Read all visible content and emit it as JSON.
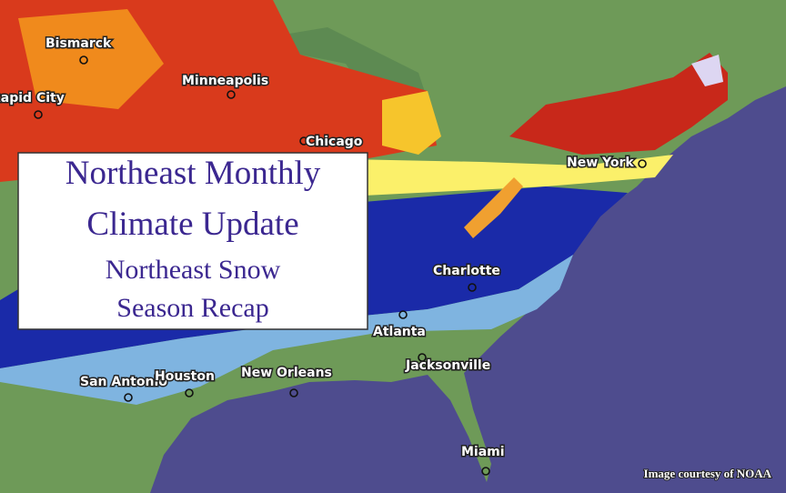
{
  "title_box": {
    "lines": [
      "Northeast Monthly",
      "Climate Update",
      "Northeast Snow",
      "Season Recap"
    ]
  },
  "map": {
    "cities": [
      {
        "label": "Bismarck"
      },
      {
        "label": "Rapid City"
      },
      {
        "label": "Minneapolis"
      },
      {
        "label": "Chicago"
      },
      {
        "label": "New York"
      },
      {
        "label": "Charlotte"
      },
      {
        "label": "Atlanta"
      },
      {
        "label": "San Antonio"
      },
      {
        "label": "Houston"
      },
      {
        "label": "New Orleans"
      },
      {
        "label": "Jacksonville"
      },
      {
        "label": "Miami"
      }
    ]
  },
  "credit": "Image courtesy of NOAA"
}
